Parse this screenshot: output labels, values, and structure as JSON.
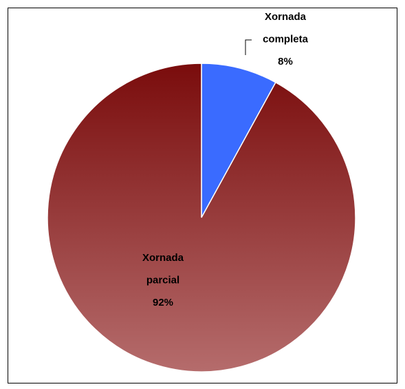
{
  "chart_data": {
    "type": "pie",
    "categories": [
      "Xornada completa",
      "Xornada parcial"
    ],
    "values": [
      8,
      92
    ],
    "value_labels": [
      "8%",
      "92%"
    ],
    "colors": [
      "#3a6bff",
      "#8a2a2a"
    ]
  }
}
